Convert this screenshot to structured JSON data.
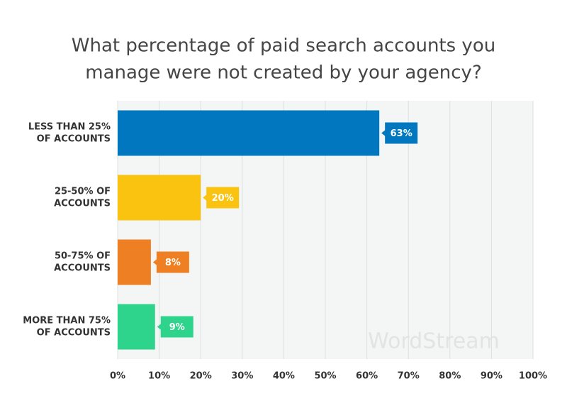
{
  "chart_data": {
    "type": "bar",
    "orientation": "horizontal",
    "title": [
      "What percentage of paid search accounts you",
      "manage were not created by your agency?"
    ],
    "categories": [
      [
        "LESS THAN 25%",
        "OF ACCOUNTS"
      ],
      [
        "25-50% OF",
        "ACCOUNTS"
      ],
      [
        "50-75% OF",
        "ACCOUNTS"
      ],
      [
        "MORE THAN 75%",
        "OF ACCOUNTS"
      ]
    ],
    "values": [
      63,
      20,
      8,
      9
    ],
    "value_labels": [
      "63%",
      "20%",
      "8%",
      "9%"
    ],
    "colors": [
      "#0077be",
      "#f9c30f",
      "#ee7f22",
      "#2ed48b"
    ],
    "xlim": [
      0,
      100
    ],
    "xticks": [
      {
        "value": 0,
        "label": "0%"
      },
      {
        "value": 10,
        "label": "10%"
      },
      {
        "value": 20,
        "label": "20%"
      },
      {
        "value": 30,
        "label": "30%"
      },
      {
        "value": 40,
        "label": "40%"
      },
      {
        "value": 50,
        "label": "50%"
      },
      {
        "value": 60,
        "label": "60%"
      },
      {
        "value": 70,
        "label": "70%"
      },
      {
        "value": 80,
        "label": "80%"
      },
      {
        "value": 90,
        "label": "90%"
      },
      {
        "value": 100,
        "label": "100%"
      }
    ],
    "grid": true,
    "watermark": "WordStream"
  }
}
